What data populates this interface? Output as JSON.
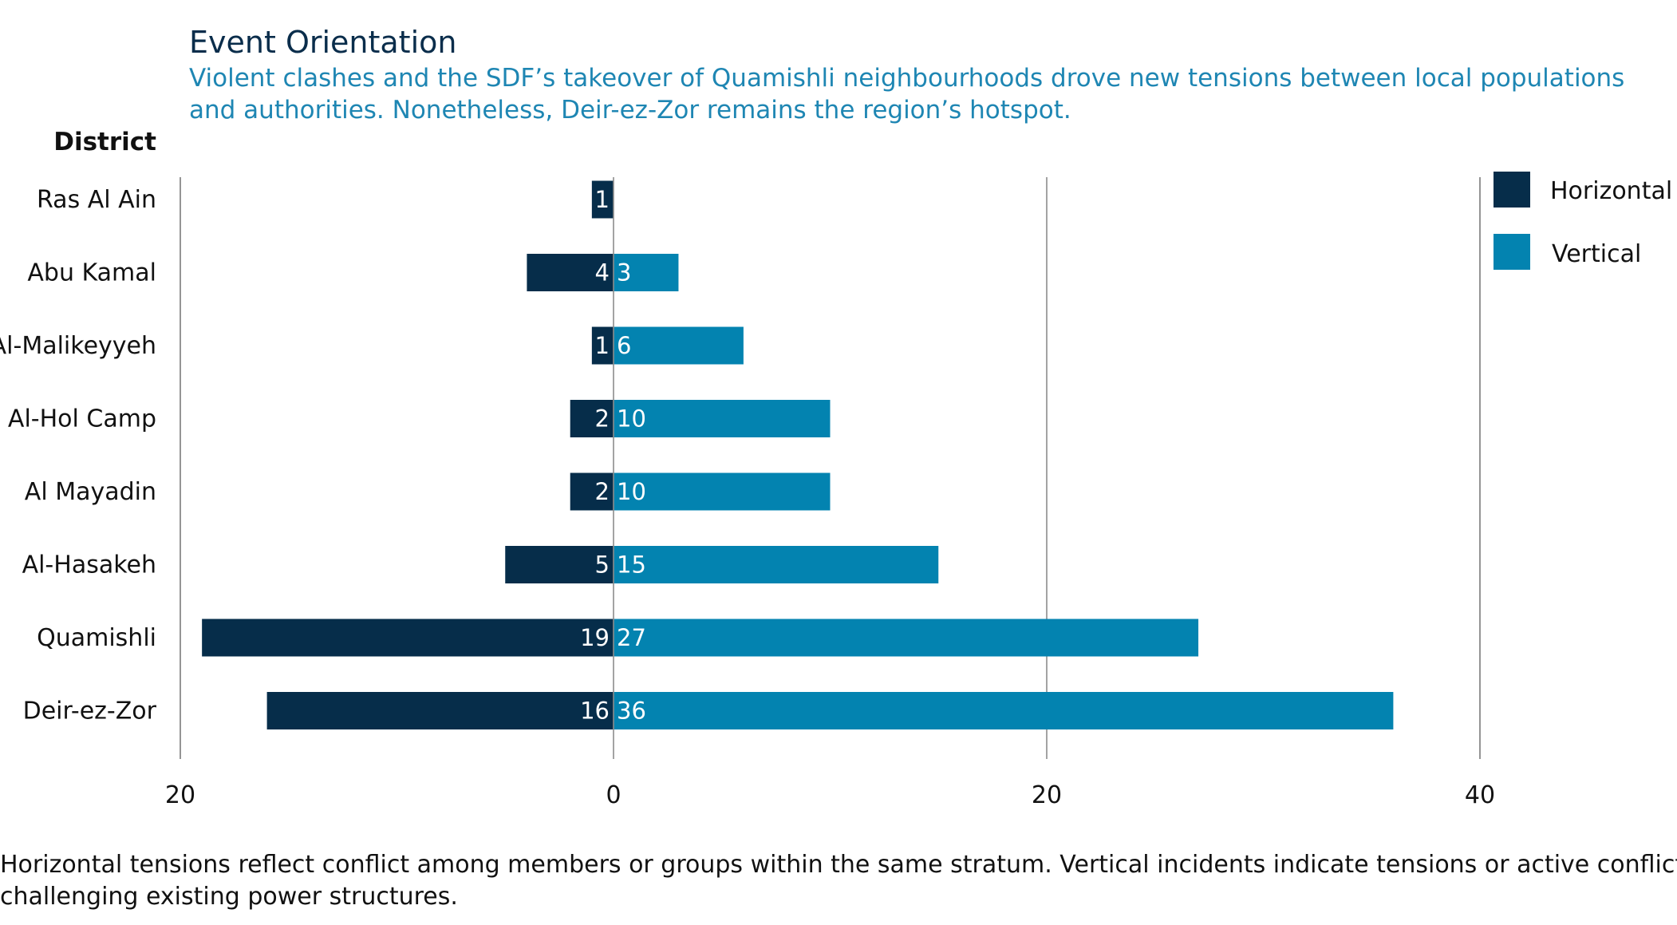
{
  "chart_data": {
    "type": "bar",
    "orientation": "horizontal",
    "layout": "diverging",
    "title": "Event Orientation",
    "subtitle": [
      "Violent clashes and the SDF’s takeover of Quamishli neighbourhoods drove new tensions between local populations",
      "and authorities. Nonetheless, Deir-ez-Zor remains the region’s hotspot."
    ],
    "ylabel": "District",
    "categories": [
      "Ras Al Ain",
      "Abu Kamal",
      "Al-Malikeyyeh",
      "Al-Hol Camp",
      "Al Mayadin",
      "Al-Hasakeh",
      "Quamishli",
      "Deir-ez-Zor"
    ],
    "series": [
      {
        "name": "Horizontal",
        "values": [
          1,
          4,
          1,
          2,
          2,
          5,
          19,
          16
        ],
        "color": "#062d4a",
        "direction": "left"
      },
      {
        "name": "Vertical",
        "values": [
          null,
          3,
          6,
          10,
          10,
          15,
          27,
          36
        ],
        "color": "#0383b0",
        "direction": "right"
      }
    ],
    "xlim": [
      -20,
      40
    ],
    "x_ticks": [
      {
        "value": -20,
        "label": "20"
      },
      {
        "value": 0,
        "label": "0"
      },
      {
        "value": 20,
        "label": "20"
      },
      {
        "value": 40,
        "label": "40"
      }
    ],
    "grid": true,
    "legend_position": "top-right",
    "footnote": [
      "Horizontal tensions reflect conflict among members or groups within the same stratum. Vertical incidents indicate tensions or active conflict",
      "challenging existing power structures."
    ]
  }
}
